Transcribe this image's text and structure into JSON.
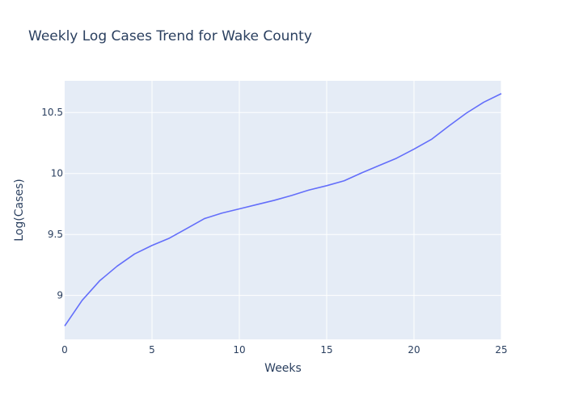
{
  "chart_data": {
    "type": "line",
    "title": "Weekly Log Cases Trend for Wake County",
    "xlabel": "Weeks",
    "ylabel": "Log(Cases)",
    "xlim": [
      0,
      25
    ],
    "ylim": [
      8.64,
      10.76
    ],
    "xticks": [
      0,
      5,
      10,
      15,
      20,
      25
    ],
    "xtick_labels": [
      "0",
      "5",
      "10",
      "15",
      "20",
      "25"
    ],
    "yticks": [
      9,
      9.5,
      10,
      10.5
    ],
    "ytick_labels": [
      "9",
      "9.5",
      "10",
      "10.5"
    ],
    "grid": true,
    "colors": {
      "line": "#636efa",
      "plot_bg": "#e5ecf6",
      "grid": "#ffffff",
      "text": "#2a3f5f"
    },
    "series": [
      {
        "x": [
          0,
          1,
          2,
          3,
          4,
          5,
          6,
          7,
          8,
          9,
          10,
          11,
          12,
          13,
          14,
          15,
          16,
          17,
          18,
          19,
          20,
          21,
          22,
          23,
          24,
          25
        ],
        "y": [
          8.75,
          8.96,
          9.12,
          9.24,
          9.34,
          9.41,
          9.47,
          9.55,
          9.63,
          9.675,
          9.71,
          9.745,
          9.78,
          9.82,
          9.865,
          9.9,
          9.94,
          10.005,
          10.065,
          10.125,
          10.2,
          10.28,
          10.39,
          10.495,
          10.585,
          10.655
        ]
      }
    ]
  }
}
